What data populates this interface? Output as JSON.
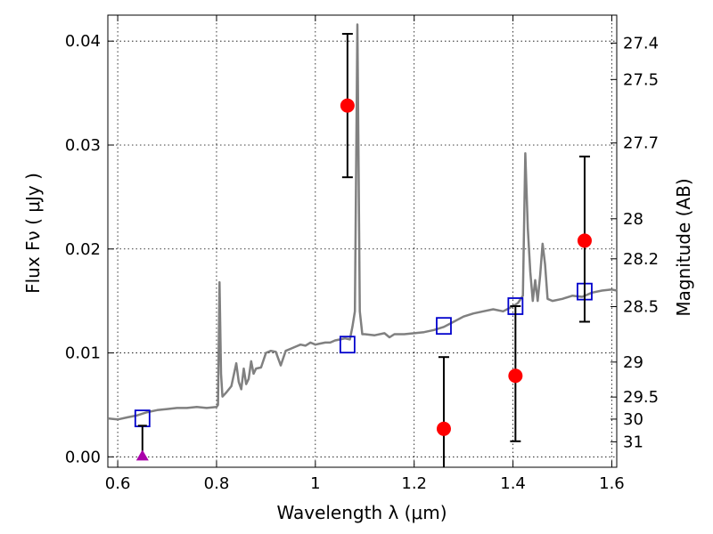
{
  "chart_data": {
    "type": "scatter",
    "xlabel": "Wavelength  λ (μm)",
    "ylabel": "Flux  Fν  ( μJy )",
    "ylabel_right": "Magnitude (AB)",
    "xlim": [
      0.58,
      1.61
    ],
    "ylim": [
      -0.001,
      0.0425
    ],
    "grid": true,
    "x_ticks": [
      {
        "value": 0.6,
        "label": "0.6"
      },
      {
        "value": 0.8,
        "label": "0.8"
      },
      {
        "value": 1.0,
        "label": "1"
      },
      {
        "value": 1.2,
        "label": "1.2"
      },
      {
        "value": 1.4,
        "label": "1.4"
      },
      {
        "value": 1.6,
        "label": "1.6"
      }
    ],
    "y_ticks": [
      {
        "value": 0.0,
        "label": "0.00"
      },
      {
        "value": 0.01,
        "label": "0.01"
      },
      {
        "value": 0.02,
        "label": "0.02"
      },
      {
        "value": 0.03,
        "label": "0.03"
      },
      {
        "value": 0.04,
        "label": "0.04"
      }
    ],
    "mag_ticks": [
      {
        "mag": 27.4,
        "label": "27.4"
      },
      {
        "mag": 27.5,
        "label": "27.5"
      },
      {
        "mag": 27.7,
        "label": "27.7"
      },
      {
        "mag": 28,
        "label": "28"
      },
      {
        "mag": 28.2,
        "label": "28.2"
      },
      {
        "mag": 28.5,
        "label": "28.5"
      },
      {
        "mag": 29,
        "label": "29"
      },
      {
        "mag": 29.5,
        "label": "29.5"
      },
      {
        "mag": 30,
        "label": "30"
      },
      {
        "mag": 31,
        "label": "31"
      }
    ],
    "model_spectrum": {
      "color": "#808080",
      "points": [
        [
          0.58,
          0.0037
        ],
        [
          0.6,
          0.0036
        ],
        [
          0.62,
          0.0038
        ],
        [
          0.64,
          0.004
        ],
        [
          0.66,
          0.0043
        ],
        [
          0.68,
          0.0045
        ],
        [
          0.7,
          0.0046
        ],
        [
          0.72,
          0.0047
        ],
        [
          0.74,
          0.0047
        ],
        [
          0.76,
          0.0048
        ],
        [
          0.78,
          0.0047
        ],
        [
          0.8,
          0.0048
        ],
        [
          0.803,
          0.005
        ],
        [
          0.806,
          0.0168
        ],
        [
          0.809,
          0.008
        ],
        [
          0.812,
          0.0058
        ],
        [
          0.82,
          0.0062
        ],
        [
          0.83,
          0.0068
        ],
        [
          0.84,
          0.009
        ],
        [
          0.845,
          0.0072
        ],
        [
          0.85,
          0.0065
        ],
        [
          0.855,
          0.0085
        ],
        [
          0.86,
          0.007
        ],
        [
          0.865,
          0.0075
        ],
        [
          0.87,
          0.0092
        ],
        [
          0.875,
          0.008
        ],
        [
          0.88,
          0.0085
        ],
        [
          0.89,
          0.0086
        ],
        [
          0.9,
          0.01
        ],
        [
          0.91,
          0.0102
        ],
        [
          0.92,
          0.0101
        ],
        [
          0.93,
          0.0088
        ],
        [
          0.94,
          0.0102
        ],
        [
          0.95,
          0.0104
        ],
        [
          0.96,
          0.0106
        ],
        [
          0.97,
          0.0108
        ],
        [
          0.98,
          0.0107
        ],
        [
          0.99,
          0.011
        ],
        [
          1.0,
          0.0108
        ],
        [
          1.01,
          0.0109
        ],
        [
          1.02,
          0.011
        ],
        [
          1.03,
          0.011
        ],
        [
          1.04,
          0.0112
        ],
        [
          1.05,
          0.0113
        ],
        [
          1.06,
          0.0114
        ],
        [
          1.07,
          0.0113
        ],
        [
          1.075,
          0.0125
        ],
        [
          1.08,
          0.014
        ],
        [
          1.085,
          0.0416
        ],
        [
          1.09,
          0.014
        ],
        [
          1.095,
          0.0118
        ],
        [
          1.1,
          0.0118
        ],
        [
          1.12,
          0.0117
        ],
        [
          1.14,
          0.0119
        ],
        [
          1.15,
          0.0115
        ],
        [
          1.16,
          0.0118
        ],
        [
          1.18,
          0.0118
        ],
        [
          1.2,
          0.0119
        ],
        [
          1.22,
          0.012
        ],
        [
          1.24,
          0.0122
        ],
        [
          1.26,
          0.0125
        ],
        [
          1.28,
          0.013
        ],
        [
          1.3,
          0.0135
        ],
        [
          1.32,
          0.0138
        ],
        [
          1.34,
          0.014
        ],
        [
          1.36,
          0.0142
        ],
        [
          1.38,
          0.014
        ],
        [
          1.4,
          0.0145
        ],
        [
          1.41,
          0.0148
        ],
        [
          1.42,
          0.0155
        ],
        [
          1.425,
          0.0292
        ],
        [
          1.43,
          0.022
        ],
        [
          1.435,
          0.0178
        ],
        [
          1.44,
          0.015
        ],
        [
          1.445,
          0.017
        ],
        [
          1.45,
          0.015
        ],
        [
          1.455,
          0.0175
        ],
        [
          1.46,
          0.0205
        ],
        [
          1.465,
          0.0185
        ],
        [
          1.47,
          0.0152
        ],
        [
          1.48,
          0.015
        ],
        [
          1.5,
          0.0152
        ],
        [
          1.52,
          0.0155
        ],
        [
          1.54,
          0.0154
        ],
        [
          1.56,
          0.0158
        ],
        [
          1.58,
          0.016
        ],
        [
          1.6,
          0.0161
        ],
        [
          1.61,
          0.016
        ]
      ]
    },
    "synthetic_photometry": {
      "color": "#0000cc",
      "points": [
        [
          0.65,
          0.0037
        ],
        [
          1.065,
          0.0108
        ],
        [
          1.26,
          0.0126
        ],
        [
          1.405,
          0.0145
        ],
        [
          1.545,
          0.0159
        ]
      ]
    },
    "observed": {
      "color": "#ff0000",
      "points": [
        {
          "x": 1.065,
          "y": 0.0338,
          "ylow": 0.0269,
          "yhigh": 0.0407
        },
        {
          "x": 1.26,
          "y": 0.0027,
          "ylow": -0.0015,
          "yhigh": 0.0096
        },
        {
          "x": 1.405,
          "y": 0.0078,
          "ylow": 0.0015,
          "yhigh": 0.0145
        },
        {
          "x": 1.545,
          "y": 0.0208,
          "ylow": 0.013,
          "yhigh": 0.0289
        }
      ]
    },
    "upper_limit": {
      "color": "#aa00aa",
      "x": 0.65,
      "y": 0.0,
      "yhigh": 0.003
    }
  }
}
